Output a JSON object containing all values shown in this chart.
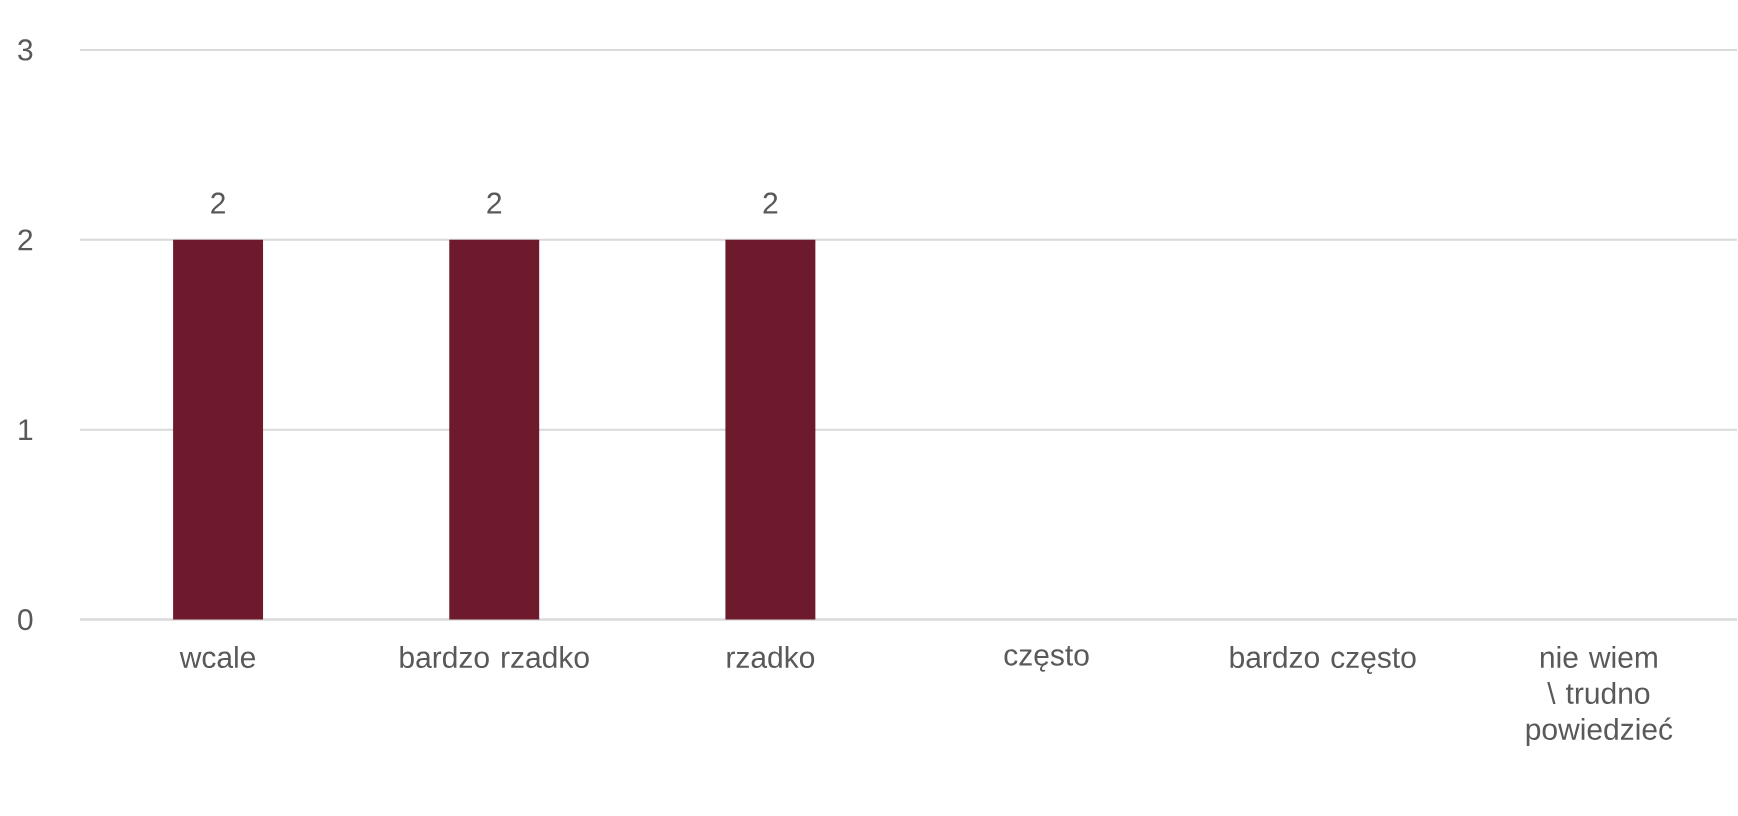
{
  "chart_data": {
    "type": "bar",
    "categories": [
      "wcale",
      "bardzo rzadko",
      "rzadko",
      "często",
      "bardzo często",
      "nie wiem \\ trudno powiedzieć"
    ],
    "values": [
      2,
      2,
      2,
      null,
      null,
      null
    ],
    "color": "#6d1b2c",
    "ylim": [
      0,
      3
    ],
    "yticks": [
      0,
      1,
      2,
      3
    ],
    "grid": "y",
    "data_labels": true
  }
}
